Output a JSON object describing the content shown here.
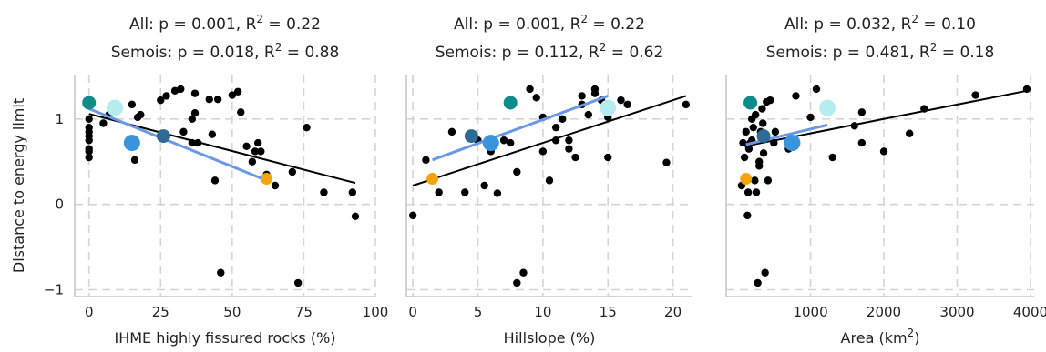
{
  "chart_data": [
    {
      "type": "scatter",
      "title_line1": "All: p = 0.001, R",
      "title_line1_sup": "2",
      "title_line1_tail": " = 0.22",
      "title_line2": "Semois: p = 0.018, R",
      "title_line2_sup": "2",
      "title_line2_tail": " = 0.88",
      "xlabel": "IHME highly fissured rocks (%)",
      "xlabel_sup": "",
      "xlabel_tail": "",
      "ylabel": "Distance to energy limit",
      "xlim": [
        -5,
        100
      ],
      "ylim": [
        -1.08,
        1.52
      ],
      "xticks": [
        0,
        25,
        50,
        75,
        100
      ],
      "yticks": [
        -1,
        0,
        1
      ],
      "grid": true,
      "all_points": {
        "x": [
          0,
          0,
          0,
          0,
          0,
          0,
          0,
          0,
          5,
          7,
          15,
          16,
          17,
          18,
          25,
          27,
          30,
          32,
          33,
          36,
          36,
          37,
          37,
          38,
          42,
          43,
          44,
          45,
          46,
          50,
          52,
          53,
          55,
          57,
          58,
          59,
          60,
          62,
          65,
          71,
          73,
          76,
          82,
          92,
          93
        ],
        "y": [
          0.55,
          0.62,
          0.65,
          0.75,
          0.8,
          0.85,
          0.9,
          1.0,
          0.95,
          1.05,
          1.17,
          0.52,
          1.02,
          1.05,
          1.22,
          1.27,
          1.33,
          1.35,
          0.85,
          1.0,
          0.72,
          1.07,
          1.3,
          0.72,
          1.23,
          0.82,
          0.28,
          1.23,
          -0.8,
          1.28,
          1.32,
          1.08,
          0.68,
          0.5,
          0.62,
          0.72,
          0.62,
          0.35,
          0.22,
          0.38,
          -0.92,
          0.9,
          0.14,
          0.14,
          -0.14
        ]
      },
      "all_fit": {
        "x": [
          0,
          93
        ],
        "y": [
          1.06,
          0.25
        ]
      },
      "semois_points": [
        {
          "x": 0,
          "y": 1.19,
          "color": "#0e8b8b"
        },
        {
          "x": 9,
          "y": 1.13,
          "color": "#b4ecf0"
        },
        {
          "x": 15,
          "y": 0.72,
          "color": "#3a94dc"
        },
        {
          "x": 26,
          "y": 0.8,
          "color": "#2e6b96"
        },
        {
          "x": 62,
          "y": 0.3,
          "color": "#f5a40c"
        }
      ],
      "semois_fit": {
        "x": [
          0,
          62
        ],
        "y": [
          1.12,
          0.28
        ]
      }
    },
    {
      "type": "scatter",
      "title_line1": "All: p = 0.001, R",
      "title_line1_sup": "2",
      "title_line1_tail": " = 0.22",
      "title_line2": "Semois: p = 0.112, R",
      "title_line2_sup": "2",
      "title_line2_tail": " = 0.62",
      "xlabel": "Hillslope (%)",
      "xlabel_sup": "",
      "xlabel_tail": "",
      "ylabel": "",
      "xlim": [
        -0.5,
        21.5
      ],
      "ylim": [
        -1.08,
        1.52
      ],
      "xticks": [
        0,
        5,
        10,
        15,
        20
      ],
      "yticks": [
        -1,
        0,
        1
      ],
      "grid": true,
      "all_points": {
        "x": [
          0,
          1,
          2,
          3,
          4,
          5,
          5.5,
          6,
          6.5,
          7,
          7.5,
          8,
          8,
          8.5,
          9,
          9.5,
          10,
          10,
          10.5,
          11,
          11,
          11.5,
          12,
          12,
          12.5,
          13,
          13,
          13.5,
          14,
          14,
          14.5,
          15,
          15,
          16,
          16.5,
          19.5,
          21
        ],
        "y": [
          -0.13,
          0.52,
          0.14,
          0.85,
          0.14,
          0.75,
          0.22,
          0.62,
          0.13,
          0.75,
          0.72,
          -0.92,
          0.38,
          -0.8,
          1.35,
          1.25,
          1.02,
          0.62,
          0.28,
          0.75,
          0.9,
          1.0,
          0.65,
          0.75,
          0.55,
          1.17,
          1.27,
          1.05,
          1.35,
          1.3,
          1.22,
          1.02,
          0.55,
          1.22,
          1.17,
          0.49,
          1.17
        ]
      },
      "all_fit": {
        "x": [
          0,
          21
        ],
        "y": [
          0.22,
          1.27
        ]
      },
      "semois_points": [
        {
          "x": 7.5,
          "y": 1.19,
          "color": "#0e8b8b"
        },
        {
          "x": 15,
          "y": 1.13,
          "color": "#b4ecf0"
        },
        {
          "x": 6,
          "y": 0.72,
          "color": "#3a94dc"
        },
        {
          "x": 4.5,
          "y": 0.8,
          "color": "#2e6b96"
        },
        {
          "x": 1.5,
          "y": 0.3,
          "color": "#f5a40c"
        }
      ],
      "semois_fit": {
        "x": [
          1.5,
          15
        ],
        "y": [
          0.52,
          1.27
        ]
      }
    },
    {
      "type": "scatter",
      "title_line1": "All: p = 0.032, R",
      "title_line1_sup": "2",
      "title_line1_tail": " = 0.10",
      "title_line2": "Semois: p = 0.481, R",
      "title_line2_sup": "2",
      "title_line2_tail": " = 0.18",
      "xlabel": "Area (km",
      "xlabel_sup": "2",
      "xlabel_tail": ")",
      "ylabel": "",
      "xlim": [
        -150,
        4050
      ],
      "ylim": [
        -1.08,
        1.52
      ],
      "xticks": [
        1000,
        2000,
        3000,
        4000
      ],
      "yticks": [
        -1,
        0,
        1
      ],
      "grid": true,
      "all_points": {
        "x": [
          60,
          80,
          100,
          120,
          140,
          150,
          160,
          170,
          180,
          200,
          200,
          220,
          240,
          250,
          260,
          280,
          300,
          300,
          320,
          340,
          350,
          360,
          380,
          400,
          420,
          450,
          500,
          520,
          700,
          800,
          1000,
          1080,
          1300,
          1600,
          1700,
          1700,
          2000,
          2350,
          2550,
          3250,
          3950
        ],
        "y": [
          0.22,
          0.72,
          0.55,
          0.85,
          -0.13,
          0.14,
          0.65,
          1.22,
          0.72,
          1.0,
          0.75,
          0.9,
          0.28,
          1.05,
          0.14,
          -0.92,
          0.5,
          0.45,
          0.85,
          1.12,
          0.95,
          0.6,
          -0.8,
          1.2,
          0.28,
          1.22,
          0.72,
          0.85,
          0.65,
          1.27,
          1.02,
          1.35,
          0.55,
          0.92,
          1.08,
          0.72,
          0.62,
          0.83,
          1.12,
          1.28,
          1.35
        ]
      },
      "all_fit": {
        "x": [
          100,
          3950
        ],
        "y": [
          0.68,
          1.33
        ]
      },
      "semois_points": [
        {
          "x": 180,
          "y": 1.19,
          "color": "#0e8b8b"
        },
        {
          "x": 1230,
          "y": 1.13,
          "color": "#b4ecf0"
        },
        {
          "x": 750,
          "y": 0.72,
          "color": "#3a94dc"
        },
        {
          "x": 360,
          "y": 0.8,
          "color": "#2e6b96"
        },
        {
          "x": 120,
          "y": 0.3,
          "color": "#f5a40c"
        }
      ],
      "semois_fit": {
        "x": [
          120,
          1230
        ],
        "y": [
          0.7,
          0.93
        ]
      }
    }
  ],
  "colors": {
    "all_points": "#000000",
    "all_fit": "#000000",
    "semois_fit": "#6b98e6",
    "grid": "#d5d5d5",
    "spine": "#c8c8c8"
  }
}
